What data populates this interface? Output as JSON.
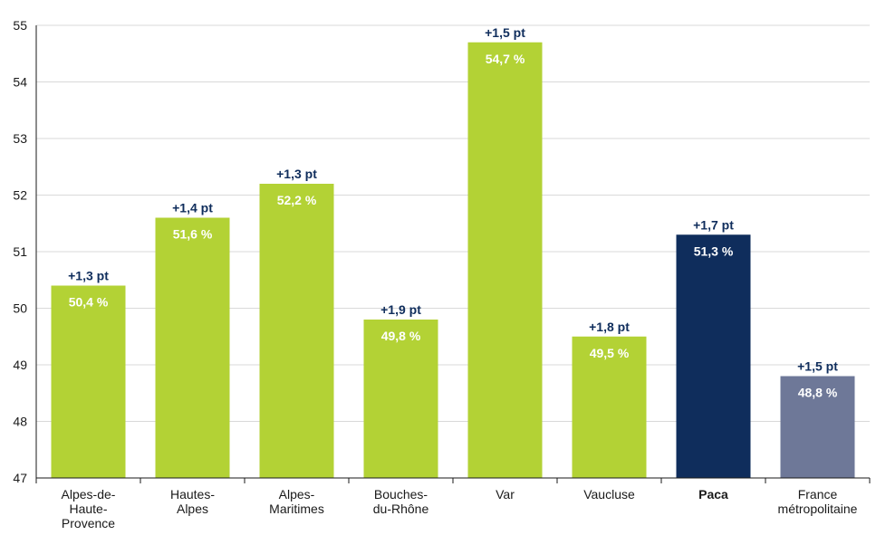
{
  "chart_data": {
    "type": "bar",
    "categories": [
      [
        "Alpes-de-",
        "Haute-",
        "Provence"
      ],
      [
        "Hautes-",
        "Alpes"
      ],
      [
        "Alpes-",
        "Maritimes"
      ],
      [
        "Bouches-",
        "du-Rhône"
      ],
      [
        "Var"
      ],
      [
        "Vaucluse"
      ],
      [
        "Paca"
      ],
      [
        "France",
        "métropolitaine"
      ]
    ],
    "values": [
      50.4,
      51.6,
      52.2,
      49.8,
      54.7,
      49.5,
      51.3,
      48.8
    ],
    "value_labels": [
      "50,4 %",
      "51,6 %",
      "52,2 %",
      "49,8 %",
      "54,7 %",
      "49,5 %",
      "51,3 %",
      "48,8  %"
    ],
    "delta_labels": [
      "+1,3 pt",
      "+1,4 pt",
      "+1,3 pt",
      "+1,9 pt",
      "+1,5 pt",
      "+1,8 pt",
      "+1,7 pt",
      "+1,5 pt"
    ],
    "bar_colors": [
      "#b3d235",
      "#b3d235",
      "#b3d235",
      "#b3d235",
      "#b3d235",
      "#b3d235",
      "#0f2d5c",
      "#6e7898"
    ],
    "bold_categories": [
      6
    ],
    "yticks": [
      "47",
      "48",
      "49",
      "50",
      "51",
      "52",
      "53",
      "54",
      "55"
    ],
    "ylim": [
      47,
      55
    ],
    "grid": true,
    "grid_color": "#d9d9d9",
    "axis_color": "#1a1a1a",
    "title": "",
    "xlabel": "",
    "ylabel": ""
  }
}
